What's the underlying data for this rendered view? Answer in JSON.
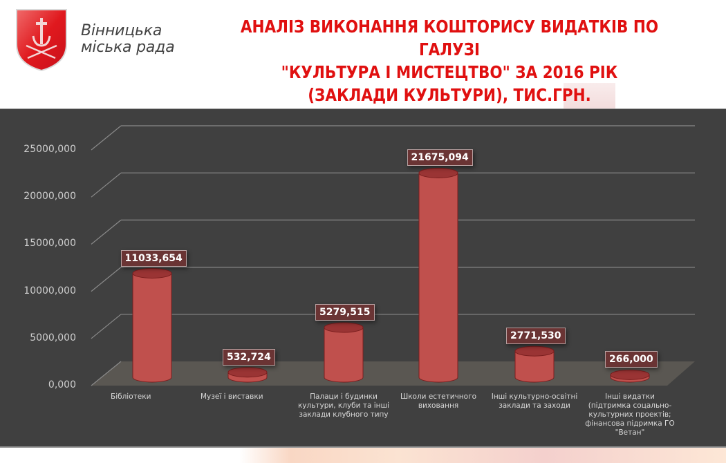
{
  "header": {
    "brand_line1": "Вінницька",
    "brand_line2": "міська рада",
    "title_line1": "АНАЛІЗ ВИКОНАННЯ КОШТОРИСУ ВИДАТКІВ ПО ГАЛУЗІ",
    "title_line2": "\"КУЛЬТУРА І МИСТЕЦТВО\" ЗА 2016 РІК",
    "title_line3": "(ЗАКЛАДИ КУЛЬТУРИ), ТИС.ГРН.",
    "logo_icon": "city-coat-of-arms-icon"
  },
  "colors": {
    "title": "#e01010",
    "panel_bg": "#404040",
    "bar": "#c0504d",
    "floor": "#5a5752",
    "label_bg": "#6a3434"
  },
  "chart_data": {
    "type": "bar",
    "style": "3d-cylinder",
    "title": "АНАЛІЗ ВИКОНАННЯ КОШТОРИСУ ВИДАТКІВ ПО ГАЛУЗІ \"КУЛЬТУРА І МИСТЕЦТВО\" ЗА 2016 РІК (ЗАКЛАДИ КУЛЬТУРИ), ТИС.ГРН.",
    "xlabel": "",
    "ylabel": "",
    "ylim": [
      0,
      25000
    ],
    "grid": true,
    "legend": "none",
    "yticks": [
      "0,000",
      "5000,000",
      "10000,000",
      "15000,000",
      "20000,000",
      "25000,000"
    ],
    "categories": [
      "Бібліотеки",
      "Музеї і виставки",
      "Палаци і будинки культури, клуби та інші заклади клубного типу",
      "Школи естетичного виховання",
      "Інші культурно-освітні заклади та заходи",
      "Інші видатки (підтримка соцально-культурних проектів; фінансова підримка ГО \"Ветан\""
    ],
    "category_lines": [
      [
        "Бібліотеки"
      ],
      [
        "Музеї і виставки"
      ],
      [
        "Палаци і будинки",
        "культури, клуби та інші",
        "заклади клубного типу"
      ],
      [
        "Школи естетичного",
        "виховання"
      ],
      [
        "Інші культурно-освітні",
        "заклади та заходи"
      ],
      [
        "Інші видатки",
        "(підтримка соцально-",
        "культурних проектів;",
        "фінансова підримка ГО",
        "\"Ветан\""
      ]
    ],
    "values": [
      11033.654,
      532.724,
      5279.515,
      21675.094,
      2771.53,
      266.0
    ],
    "value_labels": [
      "11033,654",
      "532,724",
      "5279,515",
      "21675,094",
      "2771,530",
      "266,000"
    ]
  }
}
